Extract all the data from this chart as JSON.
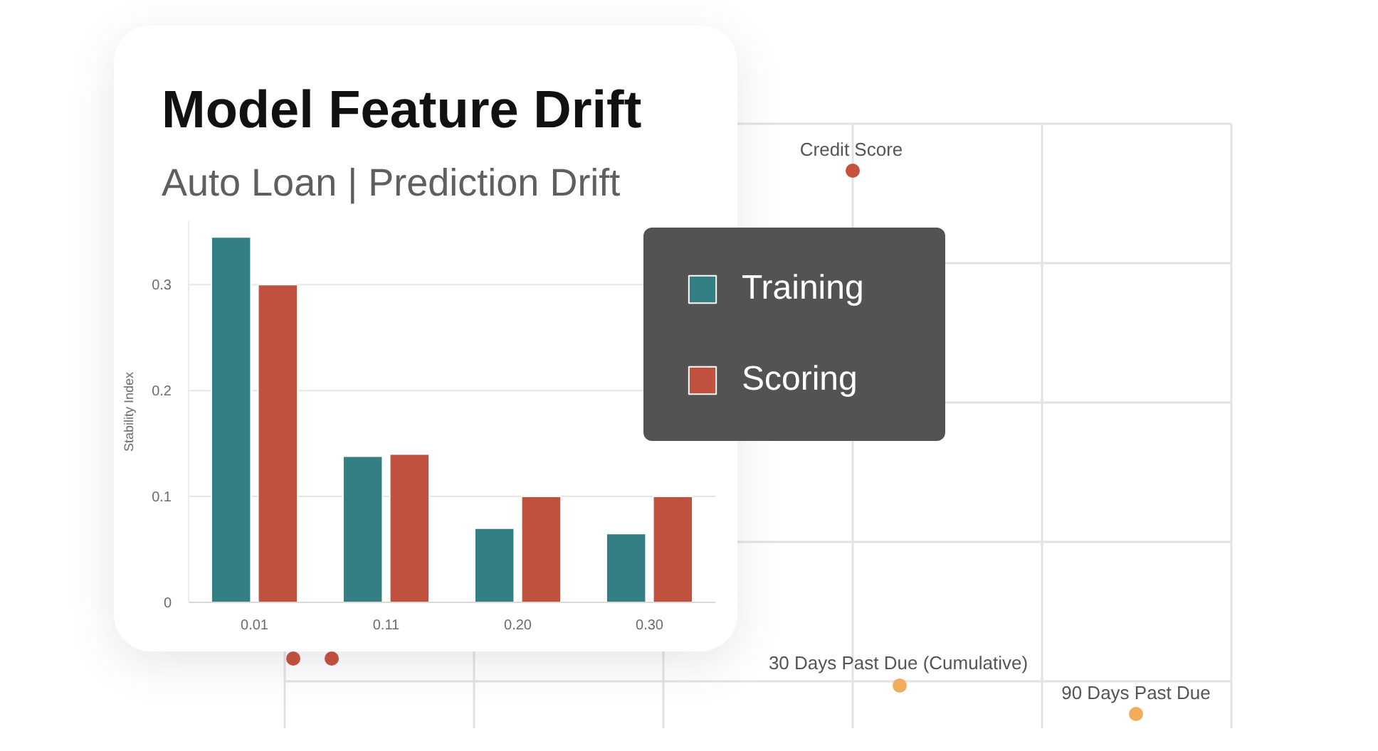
{
  "chart_data": [
    {
      "type": "bar",
      "title": "Model Feature Drift",
      "subtitle": "Auto Loan | Prediction Drift",
      "ylabel": "Stability Index",
      "categories": [
        "0.01",
        "0.11",
        "0.20",
        "0.30"
      ],
      "series": [
        {
          "name": "Training",
          "color": "#337f83",
          "values": [
            0.345,
            0.138,
            0.07,
            0.065
          ]
        },
        {
          "name": "Scoring",
          "color": "#c0513f",
          "values": [
            0.3,
            0.14,
            0.1,
            0.1
          ]
        }
      ],
      "ylim": [
        0,
        0.36
      ],
      "yticks": [
        0,
        0.1,
        0.2,
        0.3
      ],
      "grid": "y",
      "legend": "top right"
    },
    {
      "type": "other",
      "annotations": [
        "Credit Score",
        "30 Days Past Due (Cumulative)",
        "90 Days Past Due"
      ]
    }
  ]
}
